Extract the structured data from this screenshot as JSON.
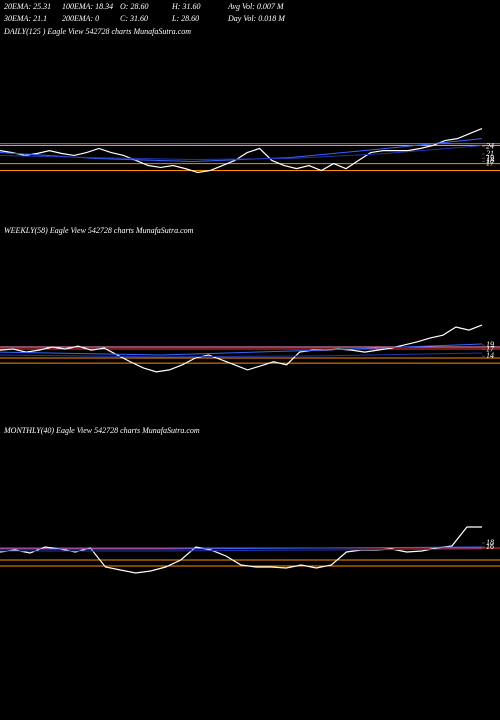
{
  "header": [
    [
      "20EMA: 25.31",
      "100EMA: 18.34",
      "O: 28.60",
      "H: 31.60",
      "Avg Vol: 0.007 M"
    ],
    [
      "30EMA: 21.1",
      "200EMA: 0",
      "C: 31.60",
      "L: 28.60",
      "Day Vol: 0.018 M"
    ]
  ],
  "chart_data": [
    {
      "type": "line",
      "title": "DAILY(125 ) Eagle View 542728 charts MunafaSutra.com",
      "ylim": [
        6,
        43.5
      ],
      "yticks": [
        24,
        21,
        19,
        18,
        17
      ],
      "levels": [
        {
          "value": 25.4,
          "color": "#ff3030"
        },
        {
          "value": 24.6,
          "color": "#ff99cc"
        },
        {
          "value": 17,
          "color": "#ff8c00"
        },
        {
          "value": 14.1,
          "color": "#ff8c00"
        }
      ],
      "series": [
        {
          "color": "#ffffff",
          "values": [
            22.4,
            21.6,
            20.4,
            21.2,
            22.4,
            21.2,
            20.4,
            21.6,
            23.3,
            21.6,
            20.4,
            18.3,
            16.2,
            15.4,
            16.2,
            14.9,
            13.3,
            14.1,
            16.2,
            18.3,
            21.6,
            23.3,
            18.3,
            16.2,
            14.9,
            16.2,
            14.1,
            17,
            14.9,
            18.3,
            21.6,
            22.4,
            22.4,
            22.4,
            23.3,
            24.5,
            26.6,
            27.4,
            29.5,
            31.6
          ]
        },
        {
          "color": "#3366ff",
          "values": [
            21.6,
            19.1,
            17.9,
            19.5,
            23.3,
            27.4
          ]
        },
        {
          "color": "#2233aa",
          "values": [
            20.4,
            19.5,
            18.7,
            19.1,
            21.2,
            24.5
          ]
        }
      ]
    },
    {
      "type": "line",
      "title": "WEEKLY(58) Eagle View 542728 charts MunafaSutra.com",
      "ylim": [
        -6,
        39.5
      ],
      "yticks": [
        19,
        17,
        14
      ],
      "levels": [
        {
          "value": 17.2,
          "color": "#ff3030"
        },
        {
          "value": 18.1,
          "color": "#ff99cc"
        },
        {
          "value": 13.1,
          "color": "#ff8c00"
        },
        {
          "value": 10.8,
          "color": "#ff8c00"
        }
      ],
      "series": [
        {
          "color": "#ffffff",
          "values": [
            16.7,
            17.2,
            15.8,
            16.7,
            18.1,
            17.2,
            18.5,
            16.7,
            17.6,
            14.5,
            11.4,
            8.6,
            6.8,
            7.7,
            10,
            13.1,
            14.5,
            12.3,
            10,
            7.7,
            9.5,
            11.4,
            10,
            15.8,
            16.7,
            16.7,
            17.2,
            16.7,
            15.8,
            16.7,
            17.6,
            19,
            20.4,
            22.2,
            23.5,
            27.2,
            25.8,
            28.1
          ]
        },
        {
          "color": "#3366ff",
          "values": [
            15.8,
            14.5,
            16.7,
            19.5
          ]
        },
        {
          "color": "#2233aa",
          "values": [
            14.5,
            13.6,
            14.1,
            15.4
          ]
        }
      ]
    },
    {
      "type": "line",
      "title": "MONTHLY(40) Eagle View 542728 charts MunafaSutra.com",
      "ylim": [
        -5.5,
        44.5
      ],
      "yticks": [
        18,
        16
      ],
      "levels": [
        {
          "value": 15.5,
          "color": "#ff3030"
        },
        {
          "value": 9.5,
          "color": "#ff8c00"
        },
        {
          "value": 6.5,
          "color": "#ff8c00"
        }
      ],
      "series": [
        {
          "color": "#ffffff",
          "values": [
            13.5,
            14.5,
            13,
            16,
            15,
            13.5,
            15.5,
            6,
            4.5,
            3,
            4,
            6,
            9.5,
            16,
            14.5,
            11.5,
            7,
            6,
            6,
            5.5,
            7,
            5.5,
            7,
            13.5,
            14.5,
            14.5,
            15,
            13.5,
            14,
            15.5,
            16.5,
            26,
            26
          ]
        },
        {
          "color": "#3366ff",
          "values": [
            15,
            15,
            15.5,
            16
          ]
        },
        {
          "color": "#2233aa",
          "values": [
            14,
            14,
            14.5,
            15
          ]
        }
      ]
    }
  ]
}
